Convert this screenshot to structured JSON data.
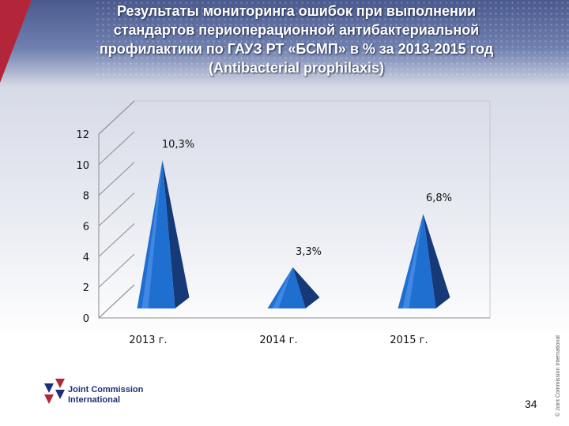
{
  "title_lines": [
    "Результаты мониторинга ошибок при выполнении",
    "стандартов периоперационной  антибактериальной",
    "профилактики по ГАУЗ РТ «БСМП» в % за 2013-2015 год",
    "(Antibacterial prophilaxis)"
  ],
  "chart_data": {
    "type": "bar",
    "shape": "3d-pyramid",
    "categories": [
      "2013 г.",
      "2014 г.",
      "2015 г."
    ],
    "values": [
      10.3,
      3.3,
      6.8
    ],
    "data_labels": [
      "10,3%",
      "3,3%",
      "6,8%"
    ],
    "yticks": [
      "0",
      "2",
      "4",
      "6",
      "8",
      "10",
      "12"
    ],
    "ylim": [
      0,
      12
    ],
    "grid": false,
    "bar_color": "#1f6fd1",
    "bar_dark_color": "#163a78"
  },
  "logo": {
    "line1": "Joint Commission",
    "line2": "International"
  },
  "page_number": "34",
  "copyright": "© Joint Commission International",
  "colors": {
    "brand_red": "#b3263a",
    "brand_blue": "#1e2f7a"
  }
}
